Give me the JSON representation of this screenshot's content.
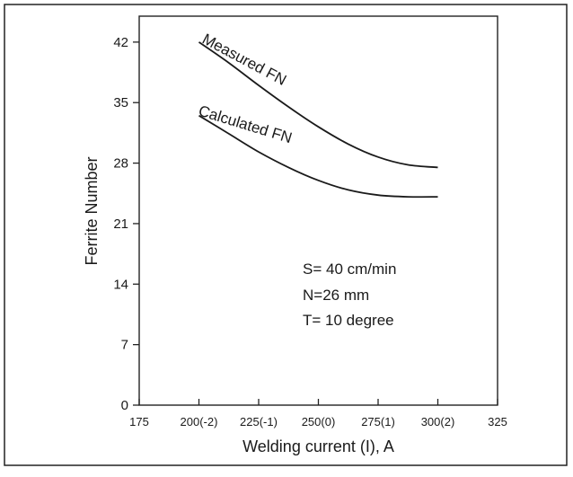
{
  "chart_data": {
    "type": "line",
    "title": "",
    "xlabel": "Welding current (I), A",
    "ylabel": "Ferrite Number",
    "xlim": [
      175,
      325
    ],
    "ylim": [
      0,
      45
    ],
    "xticks": [
      {
        "value": 175,
        "label": "175"
      },
      {
        "value": 200,
        "label": "200(-2)"
      },
      {
        "value": 225,
        "label": "225(-1)"
      },
      {
        "value": 250,
        "label": "250(0)"
      },
      {
        "value": 275,
        "label": "275(1)"
      },
      {
        "value": 300,
        "label": "300(2)"
      },
      {
        "value": 325,
        "label": "325"
      }
    ],
    "yticks": [
      0,
      7,
      14,
      21,
      28,
      35,
      42
    ],
    "grid": false,
    "legend": "none",
    "series": [
      {
        "name": "Measured FN",
        "x": [
          200,
          212.5,
          225,
          237.5,
          250,
          262.5,
          275,
          287.5,
          300
        ],
        "y": [
          42,
          39.6,
          37.0,
          34.5,
          32.2,
          30.2,
          28.7,
          27.8,
          27.5
        ]
      },
      {
        "name": "Calculated FN",
        "x": [
          200,
          212.5,
          225,
          237.5,
          250,
          262.5,
          275,
          287.5,
          300
        ],
        "y": [
          33.5,
          31.4,
          29.3,
          27.5,
          26.0,
          24.9,
          24.3,
          24.1,
          24.1
        ]
      }
    ],
    "annotations": [
      "S= 40 cm/min",
      "N=26 mm",
      "T= 10 degree"
    ]
  }
}
